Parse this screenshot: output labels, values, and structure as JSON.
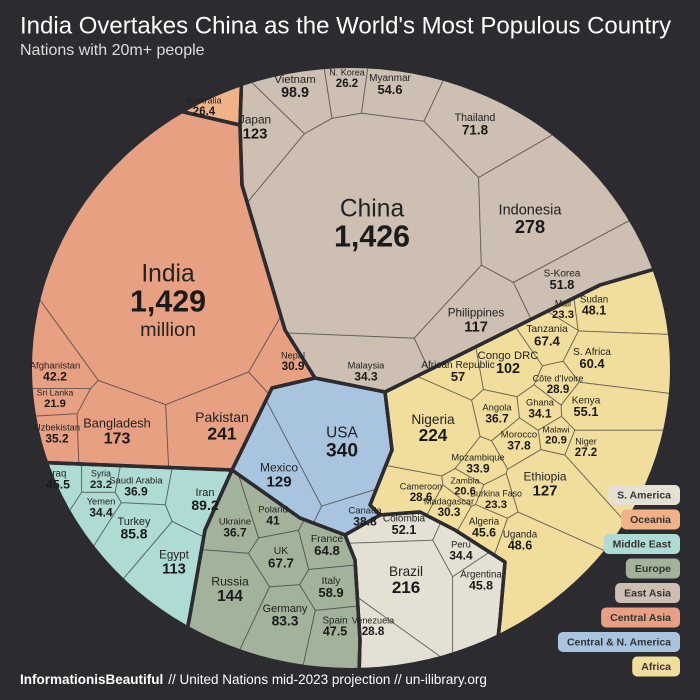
{
  "chart_data": {
    "type": "voronoi-treemap",
    "title": "India Overtakes China as the World's Most Populous Country",
    "subtitle": "Nations with 20m+ people",
    "unit_label": "million",
    "source_brand": "InformationisBeautiful",
    "source": "// United Nations mid-2023 projection // un-ilibrary.org",
    "series": [
      {
        "name": "S. America",
        "color": "#e4e0d3",
        "categories": [
          "Colombia",
          "Peru",
          "Brazil",
          "Argentina",
          "Venezuela"
        ],
        "values": [
          52.1,
          34.4,
          216,
          45.8,
          28.8
        ]
      },
      {
        "name": "Oceania",
        "color": "#f1b287",
        "categories": [
          "Australia"
        ],
        "values": [
          26.4
        ]
      },
      {
        "name": "Middle East",
        "color": "#aedbd3",
        "categories": [
          "Iraq",
          "Syria",
          "Saudi Arabia",
          "Yemen",
          "Iran",
          "Turkey",
          "Egypt"
        ],
        "values": [
          45.5,
          23.2,
          36.9,
          34.4,
          89.2,
          85.8,
          113
        ]
      },
      {
        "name": "Europe",
        "color": "#a3b29a",
        "categories": [
          "Ukraine",
          "Poland",
          "UK",
          "France",
          "Italy",
          "Russia",
          "Germany",
          "Spain"
        ],
        "values": [
          36.7,
          41,
          67.7,
          64.8,
          58.9,
          144,
          83.3,
          47.5
        ]
      },
      {
        "name": "East Asia",
        "color": "#cdbfb1",
        "categories": [
          "Vietnam",
          "N. Korea",
          "Myanmar",
          "Japan",
          "Thailand",
          "China",
          "Indonesia",
          "S-Korea",
          "Philippines",
          "Malaysia"
        ],
        "values": [
          98.9,
          26.2,
          54.6,
          123,
          71.8,
          1426,
          278,
          51.8,
          117,
          34.3
        ],
        "value_labels": [
          null,
          null,
          null,
          null,
          null,
          "1,426",
          null,
          null,
          null,
          null
        ]
      },
      {
        "name": "Central Asia",
        "color": "#e8a083",
        "categories": [
          "India",
          "Afghanistan",
          "Sri Lanka",
          "Uzbekistan",
          "Bangladesh",
          "Pakistan",
          "Nepal"
        ],
        "values": [
          1429,
          42.2,
          21.9,
          35.2,
          173,
          241,
          30.9
        ],
        "value_labels": [
          "1,429",
          null,
          null,
          null,
          null,
          null,
          null
        ]
      },
      {
        "name": "Central & N. America",
        "color": "#a9c4de",
        "categories": [
          "USA",
          "Mexico",
          "Canada"
        ],
        "values": [
          340,
          129,
          38.8
        ]
      },
      {
        "name": "Africa",
        "color": "#f2de9c",
        "categories": [
          "Mali",
          "Sudan",
          "Tanzania",
          "Congo DRC",
          "S. Africa",
          "African Republic",
          "Côte d'Ivoire",
          "Kenya",
          "Nigeria",
          "Angola",
          "Ghana",
          "Malawi",
          "Niger",
          "Morocco",
          "Mozambique",
          "Ethiopia",
          "Cameroon",
          "Zambia",
          "Burkina Faso",
          "Madagascar",
          "Uganda",
          "Algeria"
        ],
        "values": [
          23.3,
          48.1,
          67.4,
          102,
          60.4,
          57,
          28.9,
          55.1,
          224,
          36.7,
          34.1,
          20.9,
          27.2,
          37.8,
          33.9,
          127,
          28.6,
          20.6,
          23.3,
          30.3,
          48.6,
          45.6
        ]
      }
    ]
  }
}
